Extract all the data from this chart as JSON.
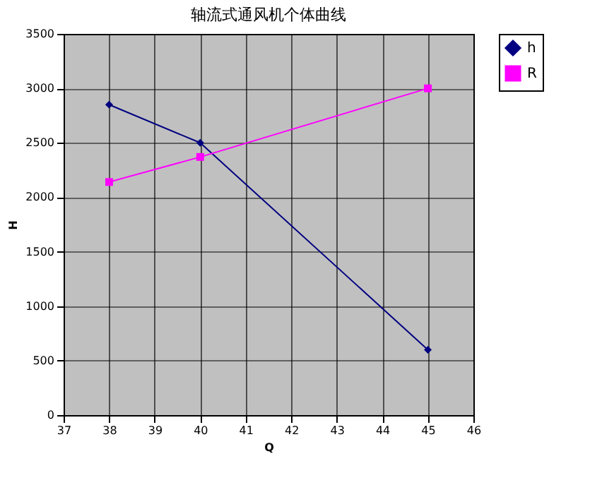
{
  "chart_data": {
    "type": "line",
    "title": "轴流式通风机个体曲线",
    "xlabel": "Q",
    "ylabel": "H",
    "x": [
      38,
      40,
      45
    ],
    "series": [
      {
        "name": "h",
        "color": "#000080",
        "values": [
          2850,
          2500,
          600
        ],
        "marker": "diamond"
      },
      {
        "name": "R",
        "color": "#ff00ff",
        "values": [
          2140,
          2370,
          3000
        ],
        "marker": "square"
      }
    ],
    "xlim": [
      37,
      46
    ],
    "xticks": [
      37,
      38,
      39,
      40,
      41,
      42,
      43,
      44,
      45,
      46
    ],
    "ylim": [
      0,
      3500
    ],
    "yticks": [
      0,
      500,
      1000,
      1500,
      2000,
      2500,
      3000,
      3500
    ],
    "grid": true,
    "legend": "right",
    "line_style": "solid"
  }
}
